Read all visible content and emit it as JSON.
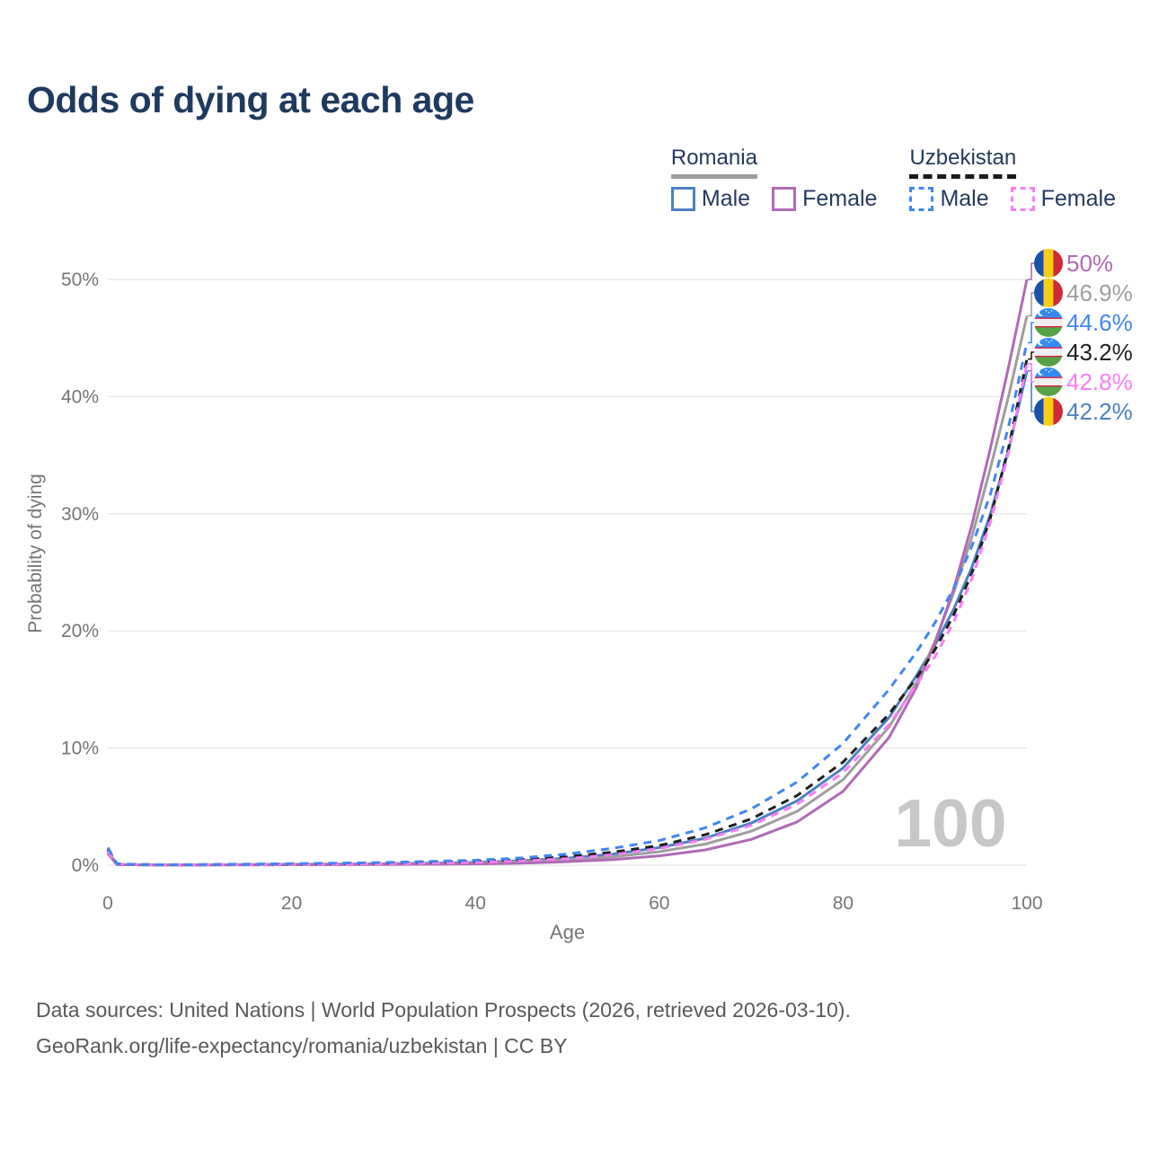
{
  "title": "Odds of dying at each age",
  "legend": {
    "groups": [
      {
        "title": "Romania",
        "line_style": "solid",
        "underline_color": "#9e9e9e",
        "items": [
          {
            "label": "Male",
            "color": "#4d80c2",
            "dashed": false
          },
          {
            "label": "Female",
            "color": "#b06ab6",
            "dashed": false
          }
        ]
      },
      {
        "title": "Uzbekistan",
        "line_style": "dashed",
        "underline_color": "#1a1a1a",
        "items": [
          {
            "label": "Male",
            "color": "#4285f4",
            "dashed": true
          },
          {
            "label": "Female",
            "color": "#fa7df4",
            "dashed": true
          }
        ]
      }
    ]
  },
  "chart_data": {
    "type": "line",
    "title": "Odds of dying at each age",
    "xlabel": "Age",
    "ylabel": "Probability of dying",
    "xlim": [
      0,
      100
    ],
    "ylim": [
      0,
      50
    ],
    "x_ticks": [
      0,
      20,
      40,
      60,
      80,
      100
    ],
    "y_grid_values": [
      0,
      10,
      20,
      30,
      40,
      50
    ],
    "y_ticks": [
      "0%",
      "10%",
      "20%",
      "30%",
      "40%",
      "50%"
    ],
    "grid": "horizontal",
    "legend_position": "top-right",
    "watermark": "100",
    "x": [
      0,
      1,
      5,
      10,
      20,
      30,
      40,
      45,
      50,
      55,
      60,
      65,
      70,
      75,
      80,
      85,
      88,
      90,
      92,
      94,
      96,
      98,
      100
    ],
    "series": [
      {
        "name": "Romania Male",
        "country": "Romania",
        "sex": "Male",
        "color": "#4d80c2",
        "dashed": false,
        "flag": "romania",
        "end_label": "42.2%",
        "end_value": 42.2,
        "label_row": 5,
        "values": [
          1.2,
          0.06,
          0.02,
          0.025,
          0.08,
          0.12,
          0.24,
          0.38,
          0.6,
          0.95,
          1.5,
          2.3,
          3.6,
          5.5,
          8.3,
          12.6,
          16.2,
          18.8,
          21.8,
          25.4,
          29.9,
          35.4,
          42.2
        ]
      },
      {
        "name": "Romania Overall",
        "country": "Romania",
        "sex": "All",
        "color": "#9e9e9e",
        "dashed": false,
        "flag": "romania",
        "end_label": "46.9%",
        "end_value": 46.9,
        "label_row": 1,
        "values": [
          1.1,
          0.055,
          0.018,
          0.02,
          0.06,
          0.09,
          0.17,
          0.28,
          0.45,
          0.72,
          1.15,
          1.8,
          2.9,
          4.6,
          7.3,
          11.8,
          15.6,
          19.1,
          23.2,
          28.0,
          33.8,
          40.0,
          46.9
        ]
      },
      {
        "name": "Romania Female",
        "country": "Romania",
        "sex": "Female",
        "color": "#b06ab6",
        "dashed": false,
        "flag": "romania",
        "end_label": "50%",
        "end_value": 50.0,
        "label_row": 0,
        "values": [
          1.0,
          0.05,
          0.015,
          0.018,
          0.035,
          0.06,
          0.11,
          0.18,
          0.3,
          0.48,
          0.8,
          1.3,
          2.2,
          3.7,
          6.3,
          10.9,
          15.2,
          19.0,
          23.5,
          29.0,
          35.5,
          42.5,
          50.0
        ]
      },
      {
        "name": "Uzbekistan Overall",
        "country": "Uzbekistan",
        "sex": "All",
        "color": "#1f1f1f",
        "dashed": true,
        "flag": "uzbekistan",
        "end_label": "43.2%",
        "end_value": 43.2,
        "label_row": 3,
        "values": [
          1.35,
          0.1,
          0.035,
          0.04,
          0.1,
          0.17,
          0.32,
          0.48,
          0.73,
          1.12,
          1.68,
          2.6,
          3.95,
          5.95,
          8.8,
          12.9,
          16.0,
          18.4,
          21.3,
          24.9,
          29.6,
          35.6,
          43.2
        ]
      },
      {
        "name": "Uzbekistan Female",
        "country": "Uzbekistan",
        "sex": "Female",
        "color": "#fa7df4",
        "dashed": true,
        "flag": "uzbekistan",
        "end_label": "42.8%",
        "end_value": 42.8,
        "label_row": 4,
        "values": [
          1.2,
          0.09,
          0.03,
          0.035,
          0.07,
          0.12,
          0.24,
          0.36,
          0.55,
          0.9,
          1.42,
          2.2,
          3.4,
          5.2,
          7.9,
          12.0,
          15.4,
          17.8,
          20.7,
          24.4,
          29.2,
          35.2,
          42.8
        ]
      },
      {
        "name": "Uzbekistan Male",
        "country": "Uzbekistan",
        "sex": "Male",
        "color": "#4285f4",
        "dashed": true,
        "flag": "uzbekistan",
        "end_label": "44.6%",
        "end_value": 44.6,
        "label_row": 2,
        "values": [
          1.5,
          0.12,
          0.04,
          0.05,
          0.13,
          0.22,
          0.42,
          0.62,
          0.95,
          1.45,
          2.1,
          3.2,
          4.8,
          7.1,
          10.4,
          15.0,
          18.2,
          20.7,
          23.6,
          27.2,
          31.6,
          37.4,
          44.6
        ]
      }
    ],
    "flags": {
      "romania": {
        "blue": "#1d50a8",
        "yellow": "#f6cf12",
        "red": "#ce2b37"
      },
      "uzbekistan": {
        "blue": "#338af3",
        "red": "#d80027",
        "white": "#efefef",
        "green": "#55a245",
        "crescent": "#ffffff"
      }
    },
    "colors": {
      "grid": "#e9e9e9",
      "axis_text": "#757575",
      "watermark": "#c7c7c7",
      "title_text": "#1f3a5f"
    }
  },
  "footer": {
    "line1": "Data sources: United Nations | World Population Prospects (2026, retrieved 2026-03-10).",
    "line2": "GeoRank.org/life-expectancy/romania/uzbekistan | CC BY"
  }
}
